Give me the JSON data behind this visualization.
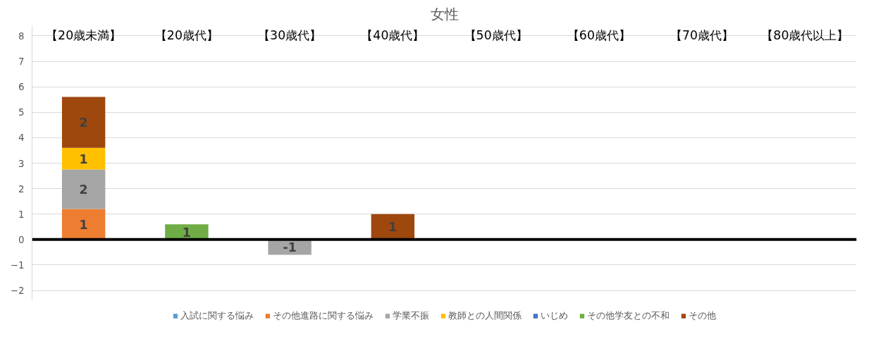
{
  "chart_data": {
    "type": "bar",
    "stacked": true,
    "title": "女性",
    "categories": [
      "【20歳未満】",
      "【20歳代】",
      "【30歳代】",
      "【40歳代】",
      "【50歳代】",
      "【60歳代】",
      "【70歳代】",
      "【80歳代以上】"
    ],
    "series": [
      {
        "name": "入試に関する悩み",
        "color": "#5b9bd5",
        "values": [
          null,
          null,
          null,
          null,
          null,
          null,
          null,
          null
        ],
        "value_labels": [
          null,
          null,
          null,
          null,
          null,
          null,
          null,
          null
        ]
      },
      {
        "name": "その他進路に関する悩み",
        "color": "#ed7d31",
        "values": [
          1.2,
          null,
          null,
          null,
          null,
          null,
          null,
          null
        ],
        "value_labels": [
          "1",
          null,
          null,
          null,
          null,
          null,
          null,
          null
        ]
      },
      {
        "name": "学業不振",
        "color": "#a5a5a5",
        "values": [
          1.55,
          null,
          -0.6,
          null,
          null,
          null,
          null,
          null
        ],
        "value_labels": [
          "2",
          null,
          "-1",
          null,
          null,
          null,
          null,
          null
        ]
      },
      {
        "name": "教師との人間関係",
        "color": "#ffc000",
        "values": [
          0.85,
          null,
          null,
          null,
          null,
          null,
          null,
          null
        ],
        "value_labels": [
          "1",
          null,
          null,
          null,
          null,
          null,
          null,
          null
        ]
      },
      {
        "name": "いじめ",
        "color": "#4472c4",
        "values": [
          null,
          null,
          null,
          null,
          null,
          null,
          null,
          null
        ],
        "value_labels": [
          null,
          null,
          null,
          null,
          null,
          null,
          null,
          null
        ]
      },
      {
        "name": "その他学友との不和",
        "color": "#70ad47",
        "values": [
          null,
          0.6,
          null,
          null,
          null,
          null,
          null,
          null
        ],
        "value_labels": [
          null,
          "1",
          null,
          null,
          null,
          null,
          null,
          null
        ]
      },
      {
        "name": "その他",
        "color": "#9e480e",
        "values": [
          2.0,
          null,
          null,
          1.0,
          null,
          null,
          null,
          null
        ],
        "value_labels": [
          "2",
          null,
          null,
          "1",
          null,
          null,
          null,
          null
        ]
      }
    ],
    "ylim": [
      -2.4,
      8.4
    ],
    "yticks": [
      {
        "value": -2,
        "label": "−2"
      },
      {
        "value": -1,
        "label": "−1"
      },
      0,
      1,
      2,
      3,
      4,
      5,
      6,
      7,
      8
    ],
    "grid": "y",
    "legend": "bottom"
  }
}
